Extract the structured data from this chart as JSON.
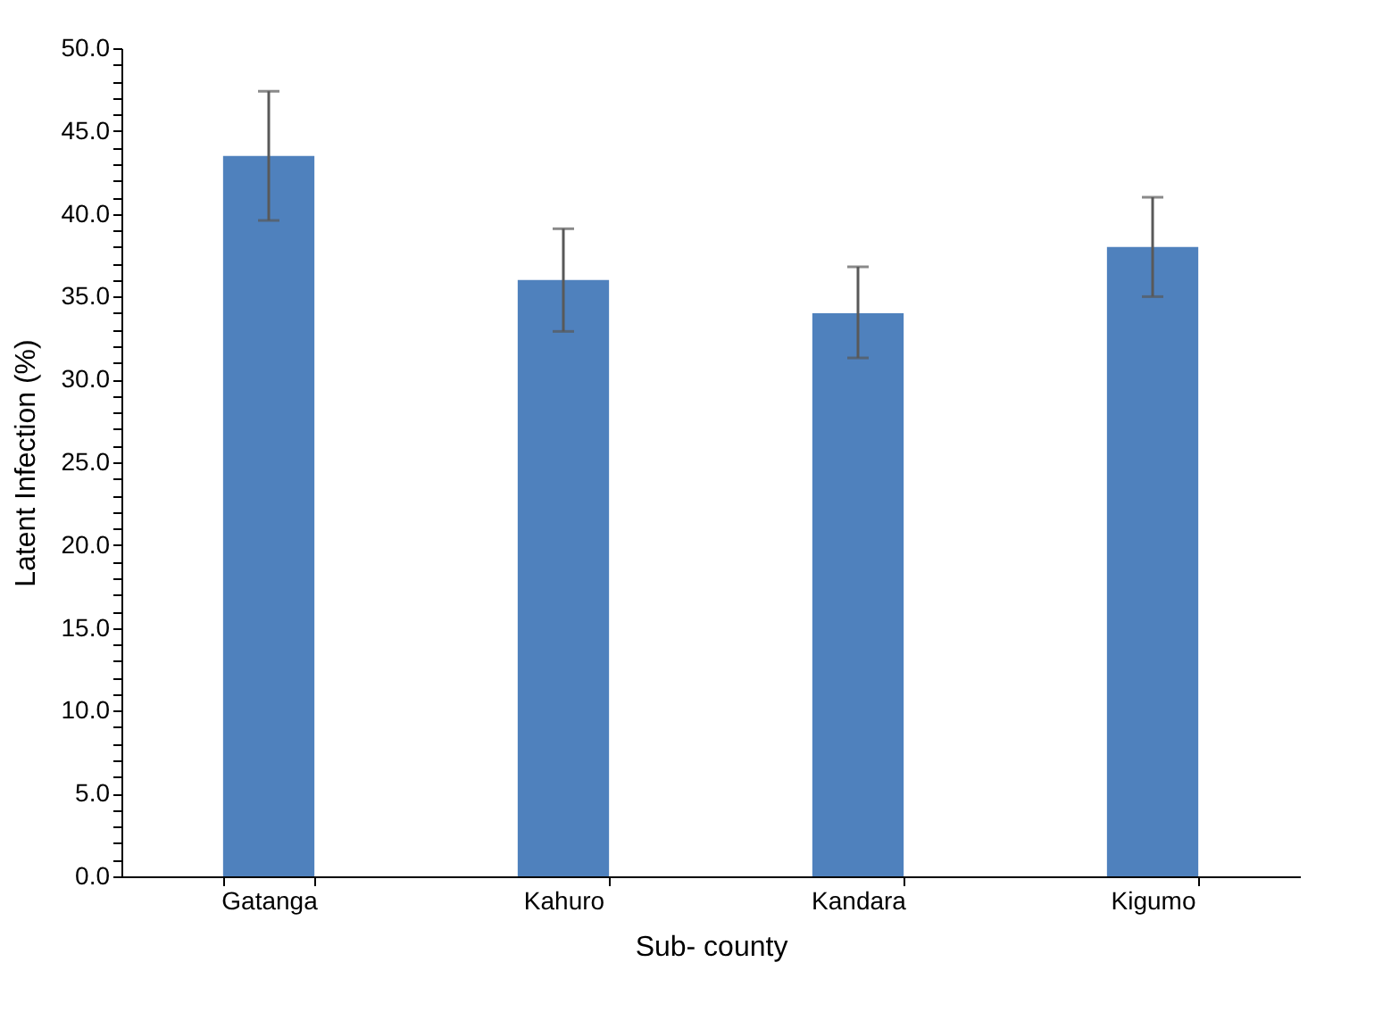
{
  "chart_data": {
    "type": "bar",
    "xlabel": "Sub- county",
    "ylabel": "Latent Infection (%)",
    "categories": [
      "Gatanga",
      "Kahuro",
      "Kandara",
      "Kigumo"
    ],
    "series": [
      {
        "color": "#4f81bd",
        "values": [
          43.5,
          36.0,
          34.0,
          38.0
        ],
        "errors": [
          [
            39.6,
            47.4
          ],
          [
            32.9,
            39.1
          ],
          [
            31.3,
            36.8
          ],
          [
            35.0,
            41.0
          ]
        ]
      }
    ],
    "ylim": [
      0,
      50
    ],
    "yticks": [
      {
        "value": 0,
        "label": "0.0"
      },
      {
        "value": 1,
        "label": null
      },
      {
        "value": 2,
        "label": null
      },
      {
        "value": 3,
        "label": null
      },
      {
        "value": 4,
        "label": null
      },
      {
        "value": 5,
        "label": "5.0"
      },
      {
        "value": 6,
        "label": null
      },
      {
        "value": 7,
        "label": null
      },
      {
        "value": 8,
        "label": null
      },
      {
        "value": 9,
        "label": null
      },
      {
        "value": 10,
        "label": "10.0"
      },
      {
        "value": 11,
        "label": null
      },
      {
        "value": 12,
        "label": null
      },
      {
        "value": 13,
        "label": null
      },
      {
        "value": 14,
        "label": null
      },
      {
        "value": 15,
        "label": "15.0"
      },
      {
        "value": 16,
        "label": null
      },
      {
        "value": 17,
        "label": null
      },
      {
        "value": 18,
        "label": null
      },
      {
        "value": 19,
        "label": null
      },
      {
        "value": 20,
        "label": "20.0"
      },
      {
        "value": 21,
        "label": null
      },
      {
        "value": 22,
        "label": null
      },
      {
        "value": 23,
        "label": null
      },
      {
        "value": 24,
        "label": null
      },
      {
        "value": 25,
        "label": "25.0"
      },
      {
        "value": 26,
        "label": null
      },
      {
        "value": 27,
        "label": null
      },
      {
        "value": 28,
        "label": null
      },
      {
        "value": 29,
        "label": null
      },
      {
        "value": 30,
        "label": "30.0"
      },
      {
        "value": 31,
        "label": null
      },
      {
        "value": 32,
        "label": null
      },
      {
        "value": 33,
        "label": null
      },
      {
        "value": 34,
        "label": null
      },
      {
        "value": 35,
        "label": "35.0"
      },
      {
        "value": 36,
        "label": null
      },
      {
        "value": 37,
        "label": null
      },
      {
        "value": 38,
        "label": null
      },
      {
        "value": 39,
        "label": null
      },
      {
        "value": 40,
        "label": "40.0"
      },
      {
        "value": 41,
        "label": null
      },
      {
        "value": 42,
        "label": null
      },
      {
        "value": 43,
        "label": null
      },
      {
        "value": 44,
        "label": null
      },
      {
        "value": 45,
        "label": "45.0"
      },
      {
        "value": 46,
        "label": null
      },
      {
        "value": 47,
        "label": null
      },
      {
        "value": 48,
        "label": null
      },
      {
        "value": 49,
        "label": null
      },
      {
        "value": 50,
        "label": "50.0"
      }
    ],
    "grid": false,
    "legend": false
  }
}
